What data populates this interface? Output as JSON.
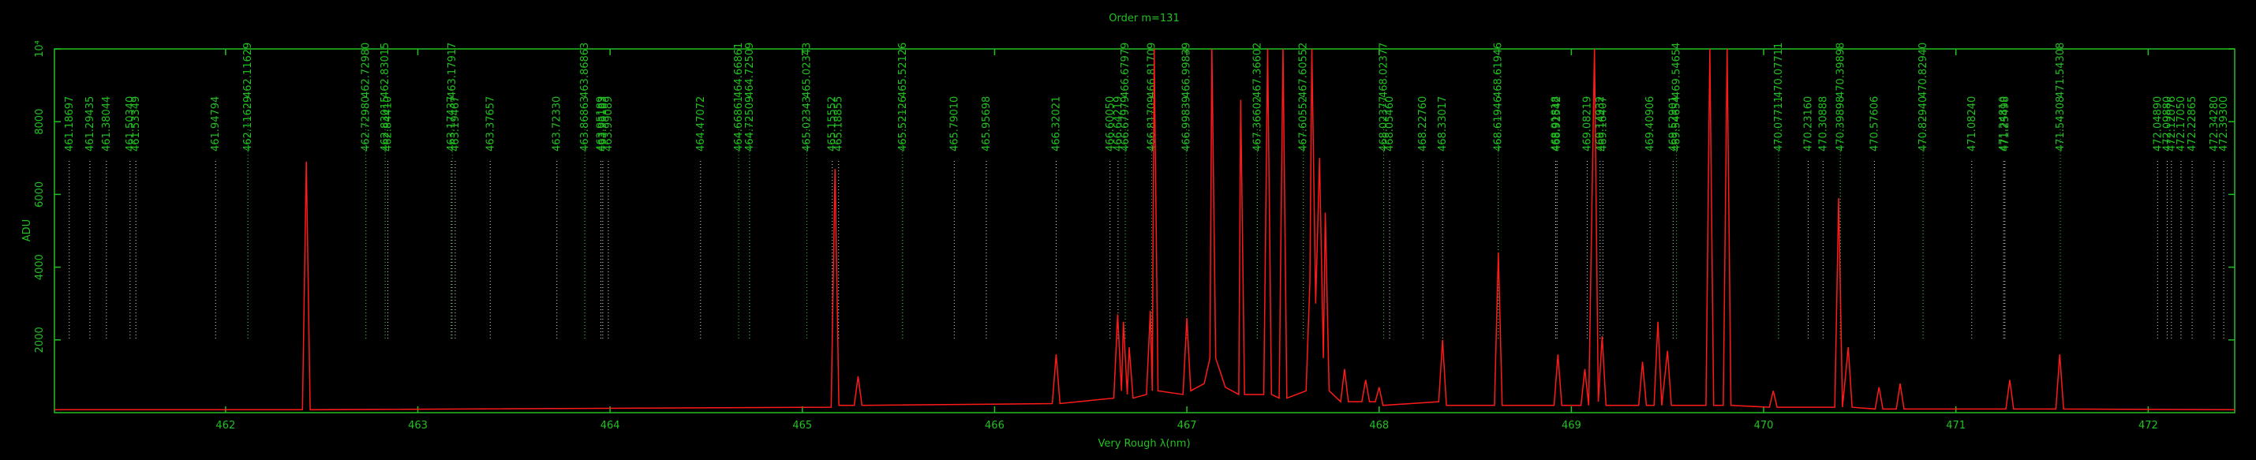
{
  "chart_data": {
    "type": "line",
    "title": "Order m=131",
    "xlabel": "Very Rough λ(nm)",
    "ylabel": "ADU",
    "color": "#ff1a1a",
    "xlim": [
      461.11,
      472.45
    ],
    "ylim": [
      0,
      10000
    ],
    "xticks": [
      462,
      463,
      464,
      465,
      466,
      467,
      468,
      469,
      470,
      471,
      472
    ],
    "yticks": [
      2000,
      4000,
      6000,
      8000,
      {
        "value": 10000,
        "label": "10⁴"
      }
    ],
    "x": [
      461.11,
      462.4,
      462.42,
      462.44,
      465.15,
      465.17,
      465.19,
      465.27,
      465.29,
      465.31,
      466.3,
      466.32,
      466.34,
      466.62,
      466.64,
      466.66,
      466.67,
      466.69,
      466.7,
      466.72,
      466.79,
      466.81,
      466.82,
      466.83,
      466.85,
      466.98,
      467.0,
      467.02,
      467.09,
      467.12,
      467.13,
      467.15,
      467.2,
      467.27,
      467.28,
      467.3,
      467.4,
      467.42,
      467.44,
      467.48,
      467.5,
      467.52,
      467.62,
      467.64,
      467.65,
      467.67,
      467.69,
      467.71,
      467.72,
      467.74,
      467.8,
      467.82,
      467.84,
      467.91,
      467.93,
      467.95,
      467.98,
      468.0,
      468.02,
      468.31,
      468.33,
      468.35,
      468.6,
      468.62,
      468.64,
      468.91,
      468.93,
      468.95,
      469.05,
      469.07,
      469.09,
      469.12,
      469.14,
      469.16,
      469.18,
      469.35,
      469.37,
      469.39,
      469.43,
      469.45,
      469.47,
      469.5,
      469.52,
      469.7,
      469.72,
      469.74,
      469.79,
      469.81,
      469.83,
      470.03,
      470.05,
      470.07,
      470.37,
      470.39,
      470.41,
      470.44,
      470.46,
      470.58,
      470.6,
      470.62,
      470.69,
      470.71,
      470.73,
      471.26,
      471.28,
      471.3,
      471.52,
      471.54,
      471.56,
      472.45
    ],
    "values": [
      80,
      80,
      6900,
      80,
      150,
      6700,
      200,
      200,
      1000,
      200,
      250,
      1600,
      250,
      400,
      2700,
      600,
      2500,
      500,
      1800,
      400,
      500,
      2800,
      600,
      10000,
      600,
      500,
      2600,
      600,
      800,
      1500,
      10000,
      1500,
      700,
      500,
      8600,
      500,
      500,
      10000,
      500,
      400,
      10000,
      400,
      600,
      3600,
      10000,
      3000,
      7000,
      1500,
      5500,
      600,
      300,
      1200,
      300,
      300,
      900,
      300,
      300,
      700,
      200,
      300,
      2000,
      200,
      200,
      4400,
      200,
      200,
      1600,
      200,
      200,
      1200,
      200,
      10000,
      300,
      2100,
      200,
      200,
      1400,
      200,
      200,
      2500,
      200,
      1700,
      200,
      200,
      10000,
      200,
      200,
      10000,
      200,
      150,
      600,
      150,
      150,
      5900,
      150,
      1800,
      150,
      100,
      700,
      100,
      100,
      800,
      100,
      100,
      900,
      100,
      100,
      1600,
      100,
      80
    ],
    "line_ids": [
      {
        "value": 461.18697,
        "label": "461.18697",
        "color": "#dddddd"
      },
      {
        "value": 461.29435,
        "label": "461.29435",
        "color": "#dddddd"
      },
      {
        "value": 461.38044,
        "label": "461.38044",
        "color": "#dddddd"
      },
      {
        "value": 461.5034,
        "label": "461.50340",
        "color": "#dddddd"
      },
      {
        "value": 461.53349,
        "label": "461.53349",
        "color": "#dddddd"
      },
      {
        "value": 461.94794,
        "label": "461.94794",
        "color": "#dddddd"
      },
      {
        "value": 462.11629,
        "label": "462.11629",
        "color": "#dddddd"
      },
      {
        "value": 462.7298,
        "label": "462.72980",
        "color": "#dddddd"
      },
      {
        "value": 462.83015,
        "label": "462.83015",
        "color": "#dddddd"
      },
      {
        "value": 462.8441,
        "label": "462.84410",
        "color": "#dddddd"
      },
      {
        "value": 463.17437,
        "label": "463.17437",
        "color": "#dddddd"
      },
      {
        "value": 463.19467,
        "label": "463.19467",
        "color": "#dddddd"
      },
      {
        "value": 463.37657,
        "label": "463.37657",
        "color": "#dddddd"
      },
      {
        "value": 463.7233,
        "label": "463.72330",
        "color": "#dddddd"
      },
      {
        "value": 463.86863,
        "label": "463.86863",
        "color": "#dddddd"
      },
      {
        "value": 463.95189,
        "label": "463.95189",
        "color": "#dddddd"
      },
      {
        "value": 463.96183,
        "label": "463.96183",
        "color": "#dddddd"
      },
      {
        "value": 463.99089,
        "label": "463.99089",
        "color": "#dddddd"
      },
      {
        "value": 464.47072,
        "label": "464.47072",
        "color": "#dddddd"
      },
      {
        "value": 464.66861,
        "label": "464.66861",
        "color": "#dddddd"
      },
      {
        "value": 464.72509,
        "label": "464.72509",
        "color": "#dddddd"
      },
      {
        "value": 465.02343,
        "label": "465.02343",
        "color": "#dddddd"
      },
      {
        "value": 465.15552,
        "label": "465.15552",
        "color": "#dddddd"
      },
      {
        "value": 465.18855,
        "label": "465.18855",
        "color": "#dddddd"
      },
      {
        "value": 465.52126,
        "label": "465.52126",
        "color": "#dddddd"
      },
      {
        "value": 465.7901,
        "label": "465.79010",
        "color": "#dddddd"
      },
      {
        "value": 465.95698,
        "label": "465.95698",
        "color": "#dddddd"
      },
      {
        "value": 466.32021,
        "label": "466.32021",
        "color": "#dddddd"
      },
      {
        "value": 466.6005,
        "label": "466.60050",
        "color": "#dddddd"
      },
      {
        "value": 466.64219,
        "label": "466.64219",
        "color": "#dddddd"
      },
      {
        "value": 466.67979,
        "label": "466.67979",
        "color": "#dddddd"
      },
      {
        "value": 466.81709,
        "label": "466.81709",
        "color": "#dddddd"
      },
      {
        "value": 466.99839,
        "label": "466.99839",
        "color": "#dddddd"
      },
      {
        "value": 467.36602,
        "label": "467.36602",
        "color": "#dddddd"
      },
      {
        "value": 467.60552,
        "label": "467.60552",
        "color": "#dddddd"
      },
      {
        "value": 468.02377,
        "label": "468.02377",
        "color": "#dddddd"
      },
      {
        "value": 468.0546,
        "label": "468.05460",
        "color": "#dddddd"
      },
      {
        "value": 468.2276,
        "label": "468.22760",
        "color": "#dddddd"
      },
      {
        "value": 468.33017,
        "label": "468.33017",
        "color": "#dddddd"
      },
      {
        "value": 468.61946,
        "label": "468.61946",
        "color": "#dddddd"
      },
      {
        "value": 468.91818,
        "label": "468.91818",
        "color": "#dddddd"
      },
      {
        "value": 468.92542,
        "label": "468.92542",
        "color": "#dddddd"
      },
      {
        "value": 469.08219,
        "label": "469.08219",
        "color": "#dddddd"
      },
      {
        "value": 469.14932,
        "label": "469.14932",
        "color": "#dddddd"
      },
      {
        "value": 469.16407,
        "label": "469.16407",
        "color": "#dddddd"
      },
      {
        "value": 469.40906,
        "label": "469.40906",
        "color": "#dddddd"
      },
      {
        "value": 469.52901,
        "label": "469.52901",
        "color": "#dddddd"
      },
      {
        "value": 469.54654,
        "label": "469.54654",
        "color": "#dddddd"
      },
      {
        "value": 470.07711,
        "label": "470.07711",
        "color": "#dddddd"
      },
      {
        "value": 470.2316,
        "label": "470.23160",
        "color": "#dddddd"
      },
      {
        "value": 470.30888,
        "label": "470.30888",
        "color": "#dddddd"
      },
      {
        "value": 470.39898,
        "label": "470.39898",
        "color": "#dddddd"
      },
      {
        "value": 470.57606,
        "label": "470.57606",
        "color": "#dddddd"
      },
      {
        "value": 470.8294,
        "label": "470.82940",
        "color": "#dddddd"
      },
      {
        "value": 471.0824,
        "label": "471.08240",
        "color": "#dddddd"
      },
      {
        "value": 471.2481,
        "label": "471.24810",
        "color": "#dddddd"
      },
      {
        "value": 471.25498,
        "label": "471.25498",
        "color": "#dddddd"
      },
      {
        "value": 471.54308,
        "label": "471.54308",
        "color": "#dddddd"
      },
      {
        "value": 472.0489,
        "label": "472.04890",
        "color": "#dddddd"
      },
      {
        "value": 472.0988,
        "label": "472.09880",
        "color": "#dddddd"
      },
      {
        "value": 472.12076,
        "label": "472.12076",
        "color": "#dddddd"
      },
      {
        "value": 472.1705,
        "label": "472.17050",
        "color": "#dddddd"
      },
      {
        "value": 472.22865,
        "label": "472.22865",
        "color": "#dddddd"
      },
      {
        "value": 472.3428,
        "label": "472.34280",
        "color": "#dddddd"
      },
      {
        "value": 472.393,
        "label": "472.39300",
        "color": "#dddddd"
      },
      {
        "value": 462.11629,
        "label": "462.11629",
        "color": "#22c022"
      },
      {
        "value": 462.7298,
        "label": "462.72980",
        "color": "#22c022"
      },
      {
        "value": 462.83015,
        "label": "462.83015",
        "color": "#22c022"
      },
      {
        "value": 463.17917,
        "label": "463.17917",
        "color": "#22c022"
      },
      {
        "value": 463.86863,
        "label": "463.86863",
        "color": "#22c022"
      },
      {
        "value": 464.66861,
        "label": "464.66861",
        "color": "#22c022"
      },
      {
        "value": 464.72509,
        "label": "464.72509",
        "color": "#22c022"
      },
      {
        "value": 465.02343,
        "label": "465.02343",
        "color": "#22c022"
      },
      {
        "value": 465.52126,
        "label": "465.52126",
        "color": "#22c022"
      },
      {
        "value": 466.67979,
        "label": "466.67979",
        "color": "#22c022"
      },
      {
        "value": 466.81709,
        "label": "466.81709",
        "color": "#22c022"
      },
      {
        "value": 466.99839,
        "label": "466.99839",
        "color": "#22c022"
      },
      {
        "value": 467.36602,
        "label": "467.36602",
        "color": "#22c022"
      },
      {
        "value": 467.60552,
        "label": "467.60552",
        "color": "#22c022"
      },
      {
        "value": 468.02377,
        "label": "468.02377",
        "color": "#22c022"
      },
      {
        "value": 468.61946,
        "label": "468.61946",
        "color": "#22c022"
      },
      {
        "value": 469.54654,
        "label": "469.54654",
        "color": "#22c022"
      },
      {
        "value": 470.07711,
        "label": "470.07711",
        "color": "#22c022"
      },
      {
        "value": 470.39898,
        "label": "470.39898",
        "color": "#22c022"
      },
      {
        "value": 470.8294,
        "label": "470.82940",
        "color": "#22c022"
      },
      {
        "value": 471.54308,
        "label": "471.54308",
        "color": "#22c022"
      }
    ]
  }
}
